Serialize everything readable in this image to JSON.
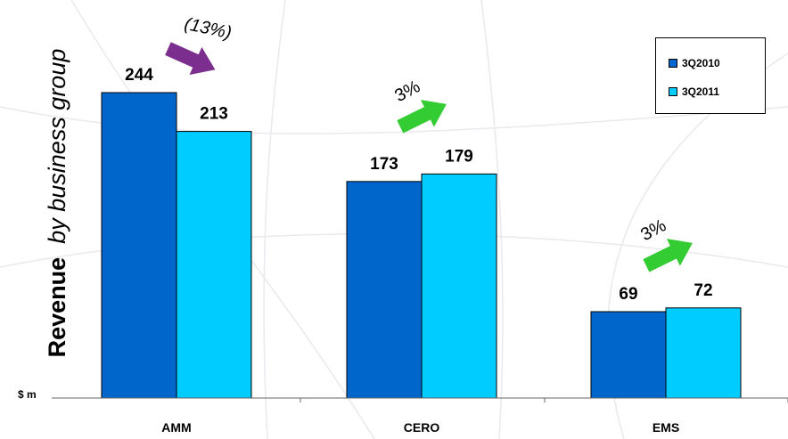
{
  "chart_data": {
    "type": "bar",
    "title": "",
    "ylabel_bold": "Revenue",
    "ylabel_italic": "by business group",
    "unit_label": "$ m",
    "categories": [
      "AMM",
      "CERO",
      "EMS"
    ],
    "series": [
      {
        "name": "3Q2010",
        "color": "#0066CC",
        "values": [
          244,
          173,
          69
        ]
      },
      {
        "name": "3Q2011",
        "color": "#00CCFF",
        "values": [
          213,
          179,
          72
        ]
      }
    ],
    "ylim": [
      0,
      250
    ],
    "grid": false,
    "legend": "top-right",
    "annotations": [
      {
        "category": "AMM",
        "text": "(13%)",
        "direction": "down",
        "arrow_color": "#7B2E8E"
      },
      {
        "category": "CERO",
        "text": "3%",
        "direction": "up",
        "arrow_color": "#33CC33"
      },
      {
        "category": "EMS",
        "text": "3%",
        "direction": "up",
        "arrow_color": "#33CC33"
      }
    ]
  }
}
